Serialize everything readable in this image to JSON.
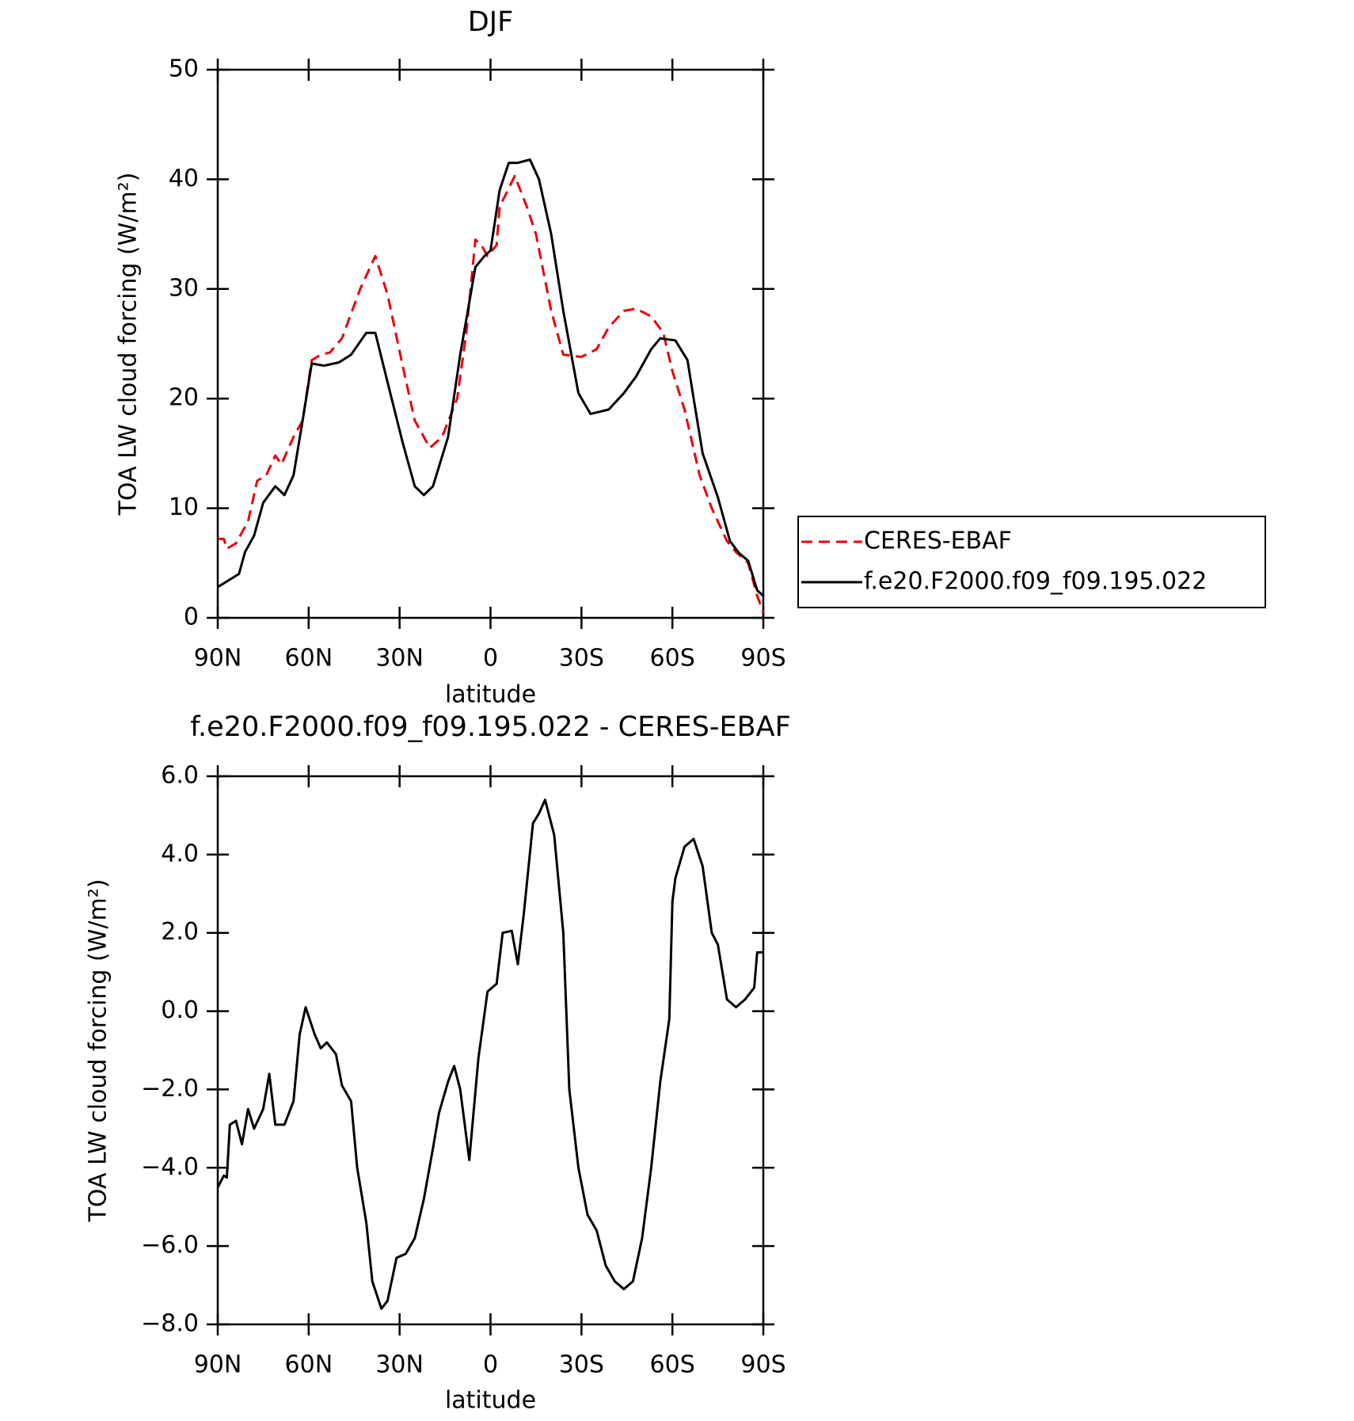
{
  "chart_data": [
    {
      "type": "line",
      "title": "DJF",
      "x_label": "latitude",
      "y_label": "TOA LW cloud forcing (W/m²)",
      "xlim": [
        90,
        -90
      ],
      "ylim": [
        0,
        50
      ],
      "xticks": [
        {
          "value": 90,
          "label": "90N"
        },
        {
          "value": 60,
          "label": "60N"
        },
        {
          "value": 30,
          "label": "30N"
        },
        0,
        {
          "value": -30,
          "label": "30S"
        },
        {
          "value": -60,
          "label": "60S"
        },
        {
          "value": -90,
          "label": "90S"
        }
      ],
      "yticks": [
        0,
        10,
        20,
        30,
        40,
        50
      ],
      "legend": "right",
      "series": [
        {
          "name": "CERES-EBAF",
          "color": "#e8000b",
          "dashed": true,
          "x": [
            90,
            88,
            87,
            84,
            80,
            77,
            74,
            71,
            69,
            65,
            62,
            59,
            56,
            53,
            49,
            43,
            38,
            34,
            29,
            25,
            20,
            16,
            11,
            8,
            5,
            3,
            1,
            -2,
            -3,
            -8,
            -12,
            -15,
            -20,
            -24,
            -30,
            -35,
            -39,
            -44,
            -48,
            -53,
            -57,
            -60,
            -64,
            -69,
            -73,
            -78,
            -81,
            -85,
            -88,
            -90
          ],
          "values": [
            7.2,
            7.2,
            6.3,
            6.8,
            8.8,
            12.5,
            13.0,
            14.8,
            14.0,
            16.5,
            18.0,
            23.5,
            24.0,
            24.2,
            25.5,
            30,
            33.0,
            29.5,
            23,
            18,
            15.5,
            16.5,
            20,
            26,
            34.5,
            34,
            33,
            34,
            37.5,
            40.3,
            37.5,
            35,
            28,
            24,
            23.8,
            24.5,
            26.5,
            28,
            28.2,
            27.5,
            26,
            22.5,
            19,
            13,
            10,
            7,
            6,
            5,
            2,
            0.5
          ]
        },
        {
          "name": "f.e20.F2000.f09_f09.195.022",
          "color": "#000000",
          "dashed": false,
          "x": [
            90,
            86,
            83,
            81,
            78,
            75,
            71,
            68,
            65,
            62,
            59,
            55,
            50,
            46,
            41,
            38,
            34,
            29,
            25,
            22,
            19,
            14,
            10,
            5,
            2,
            0,
            -3,
            -6,
            -9,
            -13,
            -16,
            -20,
            -24,
            -29,
            -33,
            -39,
            -44,
            -48,
            -53,
            -56,
            -61,
            -65,
            -67,
            -70,
            -75,
            -79,
            -82,
            -85,
            -88,
            -90
          ],
          "values": [
            2.8,
            3.5,
            4,
            6,
            7.5,
            10.5,
            12.0,
            11.2,
            13,
            18,
            23.2,
            23,
            23.3,
            24,
            26,
            26,
            21.5,
            16,
            12,
            11.2,
            12,
            16.5,
            24,
            32,
            33,
            33.5,
            39,
            41.5,
            41.5,
            41.8,
            40,
            35,
            28,
            20.5,
            18.6,
            19,
            20.5,
            22,
            24.5,
            25.5,
            25.3,
            23.5,
            20,
            15,
            11,
            7,
            5.9,
            5.2,
            2.5,
            2
          ]
        }
      ]
    },
    {
      "type": "line",
      "title": "f.e20.F2000.f09_f09.195.022 - CERES-EBAF",
      "x_label": "latitude",
      "y_label": "TOA LW cloud forcing (W/m²)",
      "xlim": [
        90,
        -90
      ],
      "ylim": [
        -8,
        6
      ],
      "xticks": [
        {
          "value": 90,
          "label": "90N"
        },
        {
          "value": 60,
          "label": "60N"
        },
        {
          "value": 30,
          "label": "30N"
        },
        0,
        {
          "value": -30,
          "label": "30S"
        },
        {
          "value": -60,
          "label": "60S"
        },
        {
          "value": -90,
          "label": "90S"
        }
      ],
      "yticks": [
        {
          "value": 6,
          "label": "6.0"
        },
        {
          "value": 4,
          "label": "4.0"
        },
        {
          "value": 2,
          "label": "2.0"
        },
        {
          "value": 0,
          "label": "0.0"
        },
        {
          "value": -2,
          "label": "−2.0"
        },
        {
          "value": -4,
          "label": "−4.0"
        },
        {
          "value": -6,
          "label": "−6.0"
        },
        {
          "value": -8,
          "label": "−8.0"
        }
      ],
      "series": [
        {
          "color": "#000000",
          "dashed": false,
          "x": [
            90,
            88,
            87,
            86,
            84,
            82,
            80,
            78,
            75,
            73,
            71,
            68,
            65,
            63,
            61,
            58,
            56,
            54,
            51,
            49,
            46,
            44,
            41,
            39,
            36,
            34,
            31,
            28,
            25,
            22,
            19,
            17,
            14,
            12,
            10,
            7,
            4,
            1,
            -2,
            -4,
            -7,
            -9,
            -11,
            -14,
            -16,
            -18,
            -21,
            -24,
            -26,
            -29,
            -32,
            -35,
            -38,
            -41,
            -44,
            -47,
            -50,
            -53,
            -56,
            -59,
            -60,
            -61,
            -64,
            -67,
            -70,
            -73,
            -75,
            -78,
            -81,
            -84,
            -87,
            -88,
            -90
          ],
          "values": [
            -4.5,
            -4.2,
            -4.25,
            -2.9,
            -2.8,
            -3.4,
            -2.5,
            -3.0,
            -2.5,
            -1.6,
            -2.9,
            -2.9,
            -2.3,
            -0.6,
            0.1,
            -0.6,
            -0.95,
            -0.8,
            -1.1,
            -1.9,
            -2.3,
            -4.0,
            -5.4,
            -6.9,
            -7.6,
            -7.4,
            -6.3,
            -6.2,
            -5.8,
            -4.8,
            -3.5,
            -2.6,
            -1.8,
            -1.4,
            -2.0,
            -3.8,
            -1.2,
            0.5,
            0.7,
            2.0,
            2.05,
            1.2,
            2.5,
            4.8,
            5.05,
            5.4,
            4.5,
            2.0,
            -2.0,
            -4.0,
            -5.2,
            -5.6,
            -6.5,
            -6.9,
            -7.1,
            -6.9,
            -5.8,
            -4.0,
            -1.8,
            -0.2,
            2.8,
            3.4,
            4.2,
            4.4,
            3.7,
            2.0,
            1.7,
            0.3,
            0.1,
            0.3,
            0.6,
            1.5,
            1.5
          ]
        }
      ]
    }
  ]
}
